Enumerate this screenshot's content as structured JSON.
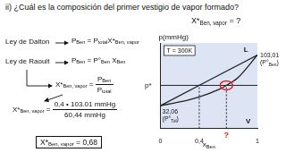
{
  "slide": {
    "title": "ii) ¿Cuál es la composición del primer vestigio de vapor formado?",
    "question": [
      {
        "t": "X*",
        "s": "Ben, vapor"
      },
      " = ?"
    ],
    "laws": [
      {
        "name": "Ley de Dalton",
        "equation": [
          {
            "t": "P",
            "s": "Ben"
          },
          " = ",
          {
            "t": "P",
            "s": "total"
          },
          {
            "t": "X*",
            "s": "Ben, vapor"
          }
        ]
      },
      {
        "name": "Ley de Raoult",
        "equation": [
          {
            "t": "P",
            "s": "Ben"
          },
          " = ",
          {
            "t": "P°",
            "s": "Ben"
          },
          " ",
          {
            "t": "X",
            "s": "Ben"
          }
        ]
      }
    ],
    "ratio": [
      {
        "t": "X*",
        "s": "Ben, vapor"
      },
      " = ",
      {
        "frac": [
          [
            {
              "t": "P",
              "s": "Ben"
            }
          ],
          [
            {
              "t": "P",
              "s": "total"
            }
          ]
        ]
      }
    ],
    "substitution": [
      {
        "t": "X*",
        "s": "Ben, vapor"
      },
      " = ",
      {
        "frac": [
          [
            "0,4 • 103.01 mmHg"
          ],
          [
            "60,44 mmHg"
          ]
        ]
      }
    ],
    "result": [
      {
        "t": "X*",
        "s": "Ben, vapor"
      },
      " = 0,68"
    ]
  },
  "chart_data": {
    "type": "line",
    "y_label": "p(mmHg)",
    "x_label": [
      {
        "t": "x",
        "s": "Ben"
      }
    ],
    "annotation": "T = 300K",
    "region_labels": [
      "L",
      "V"
    ],
    "series": [
      {
        "color": "#222222",
        "x": [
          0,
          1
        ],
        "values": [
          32.06,
          103.01
        ]
      },
      {
        "color": "#222222",
        "x": [
          0,
          0.2,
          0.4,
          0.6,
          0.68,
          0.8,
          1
        ],
        "values": [
          32.06,
          37.2,
          44.3,
          54.6,
          60.44,
          71.4,
          103.01
        ]
      }
    ],
    "end_labels": [
      {
        "x": 0,
        "y": 32.06,
        "label": "32,06",
        "note": [
          "(",
          {
            "t": "P°",
            "s": "Tol"
          },
          ")"
        ]
      },
      {
        "x": 1,
        "y": 103.01,
        "label": "103,01",
        "note": [
          "(",
          {
            "t": "P°",
            "s": "Ben"
          },
          ")"
        ]
      }
    ],
    "xlim": [
      0,
      1
    ],
    "xticks": [
      0,
      {
        "value": 0.4,
        "label": "0,4"
      },
      1
    ],
    "ylim": [
      0,
      120
    ],
    "yticks": [
      {
        "value": 60.44,
        "label": "p*"
      }
    ],
    "highlight": {
      "x": 0.68,
      "y": 60.44,
      "label": "?",
      "color": "#e01b1b"
    },
    "grid": false
  }
}
